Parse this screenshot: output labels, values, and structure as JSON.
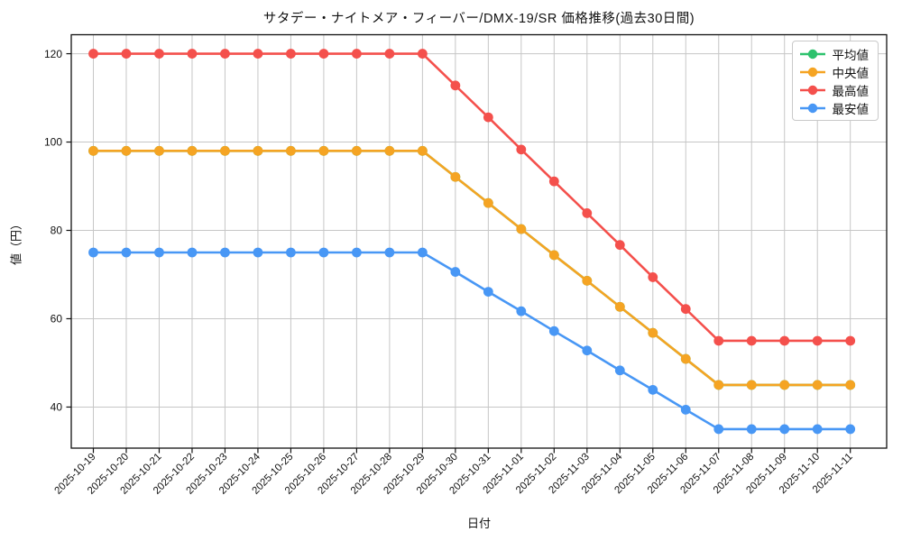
{
  "chart_data": {
    "type": "line",
    "title": "サタデー・ナイトメア・フィーバー/DMX-19/SR 価格推移(過去30日間)",
    "xlabel": "日付",
    "ylabel": "値（円）",
    "x": [
      "2025-10-19",
      "2025-10-20",
      "2025-10-21",
      "2025-10-22",
      "2025-10-23",
      "2025-10-24",
      "2025-10-25",
      "2025-10-26",
      "2025-10-27",
      "2025-10-28",
      "2025-10-29",
      "2025-10-30",
      "2025-10-31",
      "2025-11-01",
      "2025-11-02",
      "2025-11-03",
      "2025-11-04",
      "2025-11-05",
      "2025-11-06",
      "2025-11-07",
      "2025-11-08",
      "2025-11-09",
      "2025-11-10",
      "2025-11-11"
    ],
    "yticks": [
      40,
      60,
      80,
      100,
      120
    ],
    "ylim": [
      30.7,
      124.3
    ],
    "grid": true,
    "legend_position": "upper right",
    "marker": "circle",
    "series": [
      {
        "name": "平均値",
        "color": "#2dc26d",
        "values": [
          98,
          98,
          98,
          98,
          98,
          98,
          98,
          98,
          98,
          98,
          98,
          92.1,
          86.2,
          80.3,
          74.4,
          68.6,
          62.7,
          56.8,
          50.9,
          45,
          45,
          45,
          45,
          45
        ]
      },
      {
        "name": "中央値",
        "color": "#f5a423",
        "values": [
          98,
          98,
          98,
          98,
          98,
          98,
          98,
          98,
          98,
          98,
          98,
          92.1,
          86.2,
          80.3,
          74.4,
          68.6,
          62.7,
          56.8,
          50.9,
          45,
          45,
          45,
          45,
          45
        ]
      },
      {
        "name": "最高値",
        "color": "#f4504c",
        "values": [
          120,
          120,
          120,
          120,
          120,
          120,
          120,
          120,
          120,
          120,
          120,
          112.8,
          105.6,
          98.3,
          91.1,
          83.9,
          76.7,
          69.4,
          62.2,
          55,
          55,
          55,
          55,
          55
        ]
      },
      {
        "name": "最安値",
        "color": "#4897f5",
        "values": [
          75,
          75,
          75,
          75,
          75,
          75,
          75,
          75,
          75,
          75,
          75,
          70.6,
          66.1,
          61.7,
          57.2,
          52.8,
          48.3,
          43.9,
          39.4,
          35,
          35,
          35,
          35,
          35
        ]
      }
    ]
  }
}
